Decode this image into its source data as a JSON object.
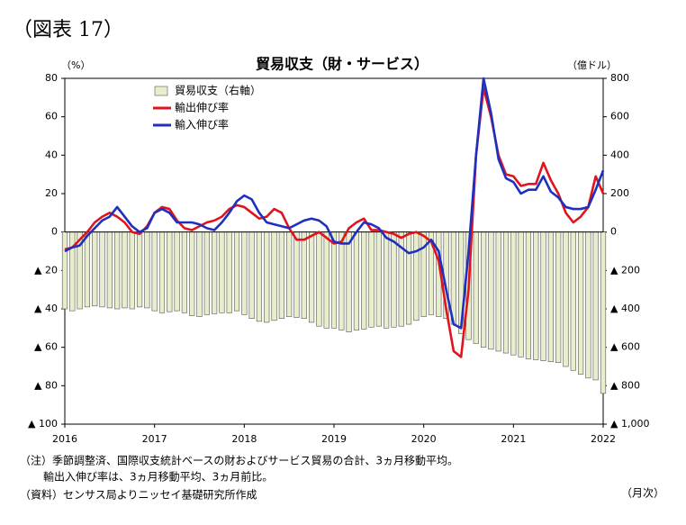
{
  "figure_label": "（図表 17）",
  "chart_data": {
    "type": "bar",
    "title": "貿易収支（財・サービス）",
    "y_label": "（%）",
    "y2_label": "（億ドル）",
    "x_label": "（月次）",
    "categories": [
      "2016",
      null,
      null,
      null,
      null,
      null,
      null,
      null,
      null,
      null,
      null,
      null,
      "2017",
      null,
      null,
      null,
      null,
      null,
      null,
      null,
      null,
      null,
      null,
      null,
      "2018",
      null,
      null,
      null,
      null,
      null,
      null,
      null,
      null,
      null,
      null,
      null,
      "2019",
      null,
      null,
      null,
      null,
      null,
      null,
      null,
      null,
      null,
      null,
      null,
      "2020",
      null,
      null,
      null,
      null,
      null,
      null,
      null,
      null,
      null,
      null,
      null,
      "2021",
      null,
      null,
      null,
      null,
      null,
      null,
      null,
      null,
      null,
      null,
      null,
      "2022"
    ],
    "series": [
      {
        "name": "貿易収支（右軸）",
        "type": "bar",
        "axis": "y2",
        "color": "#e8edcc",
        "edge": "#555555",
        "values": [
          -400,
          -410,
          -400,
          -390,
          -385,
          -390,
          -395,
          -400,
          -395,
          -400,
          -390,
          -395,
          -410,
          -420,
          -415,
          -410,
          -420,
          -435,
          -440,
          -430,
          -425,
          -420,
          -420,
          -410,
          -430,
          -450,
          -465,
          -470,
          -460,
          -450,
          -440,
          -445,
          -450,
          -470,
          -490,
          -500,
          -500,
          -510,
          -520,
          -510,
          -505,
          -495,
          -490,
          -500,
          -495,
          -490,
          -480,
          -460,
          -440,
          -430,
          -440,
          -450,
          -480,
          -530,
          -560,
          -580,
          -600,
          -610,
          -620,
          -630,
          -640,
          -650,
          -660,
          -665,
          -670,
          -675,
          -680,
          -700,
          -720,
          -740,
          -760,
          -770,
          -840
        ]
      },
      {
        "name": "輸出伸び率",
        "type": "line",
        "color": "#e0141c",
        "values": [
          -9,
          -8,
          -4,
          0,
          5,
          8,
          10,
          8,
          5,
          0,
          -1,
          3,
          10,
          13,
          12,
          6,
          2,
          1,
          3,
          5,
          6,
          8,
          12,
          14,
          13,
          10,
          7,
          8,
          12,
          10,
          2,
          -4,
          -4,
          -2,
          0,
          -3,
          -6,
          -5,
          2,
          5,
          7,
          1,
          1,
          0,
          -1,
          -3,
          -1,
          0,
          -2,
          -5,
          -15,
          -40,
          -62,
          -65,
          -30,
          40,
          75,
          60,
          40,
          30,
          29,
          24,
          25,
          25,
          36,
          27,
          20,
          10,
          5,
          8,
          13,
          29,
          20
        ]
      },
      {
        "name": "輸入伸び率",
        "type": "line",
        "color": "#1f2fbf",
        "values": [
          -10,
          -8,
          -7,
          -2,
          2,
          6,
          8,
          13,
          8,
          3,
          0,
          2,
          10,
          12,
          10,
          5,
          5,
          5,
          4,
          2,
          1,
          5,
          10,
          16,
          19,
          17,
          10,
          5,
          4,
          3,
          2,
          4,
          6,
          7,
          6,
          3,
          -5,
          -6,
          -6,
          0,
          5,
          4,
          2,
          -3,
          -5,
          -8,
          -11,
          -10,
          -8,
          -4,
          -10,
          -30,
          -48,
          -50,
          -10,
          40,
          80,
          62,
          38,
          28,
          26,
          20,
          22,
          22,
          29,
          21,
          18,
          13,
          12,
          12,
          13,
          22,
          32
        ]
      }
    ],
    "ylim": [
      -100,
      80
    ],
    "yticks": [
      {
        "value": -100,
        "label": "▲ 100"
      },
      {
        "value": -80,
        "label": "▲ 80"
      },
      {
        "value": -60,
        "label": "▲ 60"
      },
      {
        "value": -40,
        "label": "▲ 40"
      },
      {
        "value": -20,
        "label": "▲ 20"
      },
      0,
      20,
      40,
      60,
      80
    ],
    "y2lim": [
      -1000,
      800
    ],
    "y2ticks": [
      {
        "value": -1000,
        "label": "▲ 1,000"
      },
      {
        "value": -800,
        "label": "▲ 800"
      },
      {
        "value": -600,
        "label": "▲ 600"
      },
      {
        "value": -400,
        "label": "▲ 400"
      },
      {
        "value": -200,
        "label": "▲ 200"
      },
      0,
      200,
      400,
      600,
      800
    ],
    "notes": [
      "（注）季節調整済、国際収支統計ベースの財およびサービス貿易の合計、3ヵ月移動平均。",
      "輸出入伸び率は、3ヵ月移動平均、3ヵ月前比。",
      "（資料）センサス局よりニッセイ基礎研究所作成"
    ]
  }
}
